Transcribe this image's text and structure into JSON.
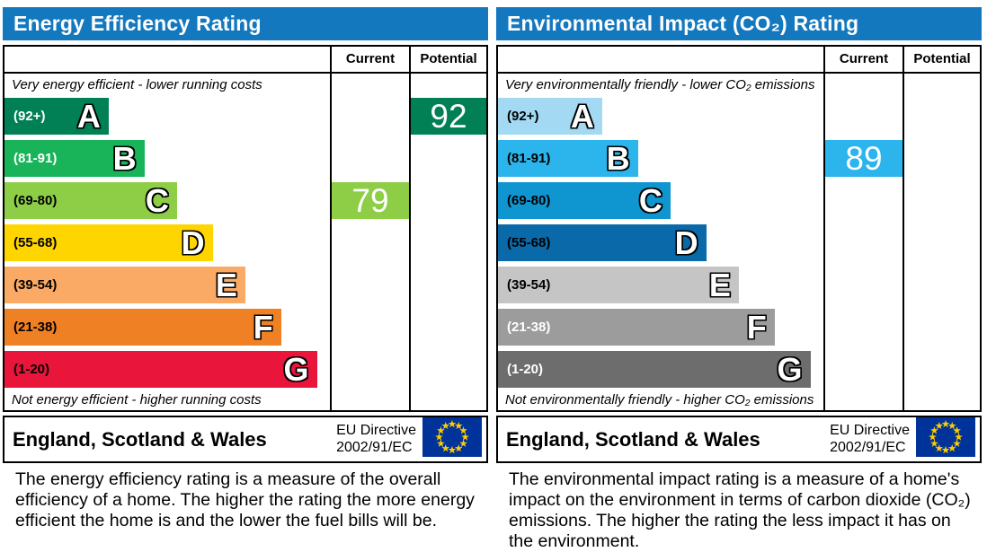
{
  "panels": [
    {
      "title": "Energy Efficiency Rating",
      "columns": {
        "current": "Current",
        "potential": "Potential"
      },
      "top_note": "Very energy efficient - lower running costs",
      "bottom_note": "Not energy efficient - higher running costs",
      "bands": [
        {
          "range": "(92+)",
          "letter": "A",
          "color": "#008054",
          "range_color": "#ffffff",
          "width_pct": 32
        },
        {
          "range": "(81-91)",
          "letter": "B",
          "color": "#19b459",
          "range_color": "#ffffff",
          "width_pct": 43
        },
        {
          "range": "(69-80)",
          "letter": "C",
          "color": "#8dce46",
          "range_color": "#000000",
          "width_pct": 53
        },
        {
          "range": "(55-68)",
          "letter": "D",
          "color": "#ffd500",
          "range_color": "#000000",
          "width_pct": 64
        },
        {
          "range": "(39-54)",
          "letter": "E",
          "color": "#fbaa65",
          "range_color": "#000000",
          "width_pct": 74
        },
        {
          "range": "(21-38)",
          "letter": "F",
          "color": "#ef8023",
          "range_color": "#000000",
          "width_pct": 85
        },
        {
          "range": "(1-20)",
          "letter": "G",
          "color": "#e9153b",
          "range_color": "#000000",
          "width_pct": 96
        }
      ],
      "current": {
        "value": "79",
        "band_index": 2,
        "color": "#8dce46"
      },
      "potential": {
        "value": "92",
        "band_index": 0,
        "color": "#008054"
      },
      "footer": {
        "region": "England, Scotland & Wales",
        "directive_line1": "EU Directive",
        "directive_line2": "2002/91/EC"
      },
      "description": "The energy efficiency rating is a measure of the overall efficiency of a home. The higher the rating the more energy efficient the home is and the lower the fuel bills will be."
    },
    {
      "title": "Environmental Impact (CO₂) Rating",
      "columns": {
        "current": "Current",
        "potential": "Potential"
      },
      "top_note": "Very environmentally friendly - lower CO₂ emissions",
      "bottom_note": "Not environmentally friendly - higher CO₂ emissions",
      "bands": [
        {
          "range": "(92+)",
          "letter": "A",
          "color": "#a3d9f3",
          "range_color": "#000000",
          "width_pct": 32
        },
        {
          "range": "(81-91)",
          "letter": "B",
          "color": "#2cb4ec",
          "range_color": "#000000",
          "width_pct": 43
        },
        {
          "range": "(69-80)",
          "letter": "C",
          "color": "#0f95d0",
          "range_color": "#000000",
          "width_pct": 53
        },
        {
          "range": "(55-68)",
          "letter": "D",
          "color": "#0a69a8",
          "range_color": "#000000",
          "width_pct": 64
        },
        {
          "range": "(39-54)",
          "letter": "E",
          "color": "#c5c5c5",
          "range_color": "#000000",
          "width_pct": 74
        },
        {
          "range": "(21-38)",
          "letter": "F",
          "color": "#9c9c9c",
          "range_color": "#ffffff",
          "width_pct": 85
        },
        {
          "range": "(1-20)",
          "letter": "G",
          "color": "#6d6d6d",
          "range_color": "#ffffff",
          "width_pct": 96
        }
      ],
      "current": {
        "value": "89",
        "band_index": 1,
        "color": "#2cb4ec"
      },
      "potential": null,
      "footer": {
        "region": "England, Scotland & Wales",
        "directive_line1": "EU Directive",
        "directive_line2": "2002/91/EC"
      },
      "description": "The environmental impact rating is a measure of a home's impact on the environment in terms of carbon dioxide (CO₂) emissions. The higher the rating the less impact it has on the environment."
    }
  ],
  "colors": {
    "header_blue": "#1478be",
    "eu_flag_blue": "#003399",
    "eu_flag_star_yellow": "#ffcc00"
  },
  "chart_data": [
    {
      "type": "bar",
      "title": "Energy Efficiency Rating",
      "categories": [
        "A (92+)",
        "B (81-91)",
        "C (69-80)",
        "D (55-68)",
        "E (39-54)",
        "F (21-38)",
        "G (1-20)"
      ],
      "band_bar_lengths_pct": [
        32,
        43,
        53,
        64,
        74,
        85,
        96
      ],
      "current": 79,
      "current_band": "C",
      "potential": 92,
      "potential_band": "A",
      "scale": [
        1,
        100
      ],
      "legend_position": "top-right-columns"
    },
    {
      "type": "bar",
      "title": "Environmental Impact (CO₂) Rating",
      "categories": [
        "A (92+)",
        "B (81-91)",
        "C (69-80)",
        "D (55-68)",
        "E (39-54)",
        "F (21-38)",
        "G (1-20)"
      ],
      "band_bar_lengths_pct": [
        32,
        43,
        53,
        64,
        74,
        85,
        96
      ],
      "current": 89,
      "current_band": "B",
      "potential": null,
      "potential_band": null,
      "scale": [
        1,
        100
      ],
      "legend_position": "top-right-columns"
    }
  ]
}
